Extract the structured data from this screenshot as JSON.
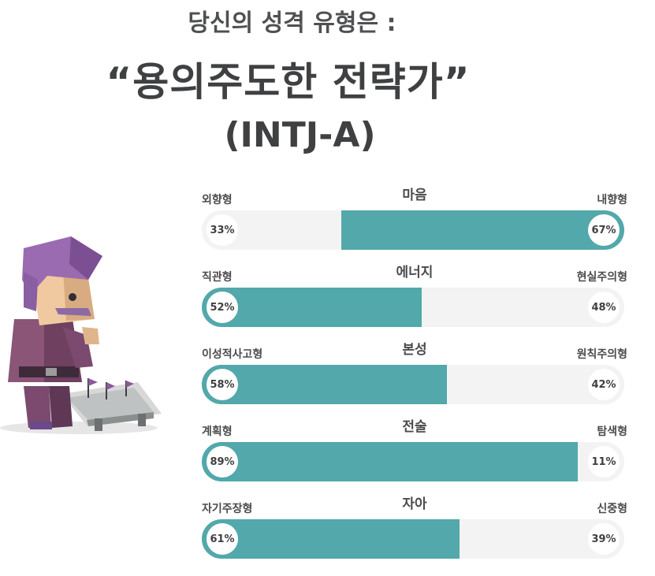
{
  "header": {
    "line1": "당신의 성격 유형은 :",
    "line2": "“용의주도한 전략가”",
    "line3": "(INTJ-A)"
  },
  "colors": {
    "accent": "#52a8aa",
    "track": "#f3f3f3",
    "text": "#4a4b4d"
  },
  "illustration": {
    "icon": "strategist-character-icon"
  },
  "chart_data": {
    "type": "bar",
    "orientation": "horizontal-stacked",
    "xlim": [
      0,
      100
    ],
    "unit": "%",
    "categories": [
      "마음",
      "에너지",
      "본성",
      "전술",
      "자아"
    ],
    "series": [
      {
        "name": "left",
        "labels": [
          "외향형",
          "직관형",
          "이성적사고형",
          "계획형",
          "자기주장형"
        ],
        "values": [
          33,
          52,
          58,
          89,
          61
        ]
      },
      {
        "name": "right",
        "labels": [
          "내향형",
          "현실주의형",
          "원칙주의형",
          "탐색형",
          "신중형"
        ],
        "values": [
          67,
          48,
          42,
          11,
          39
        ]
      }
    ],
    "dominant": [
      "right",
      "left",
      "left",
      "left",
      "left"
    ],
    "display": [
      "33%",
      "52%",
      "58%",
      "89%",
      "61%"
    ],
    "display_right": [
      "67%",
      "48%",
      "42%",
      "11%",
      "39%"
    ]
  }
}
